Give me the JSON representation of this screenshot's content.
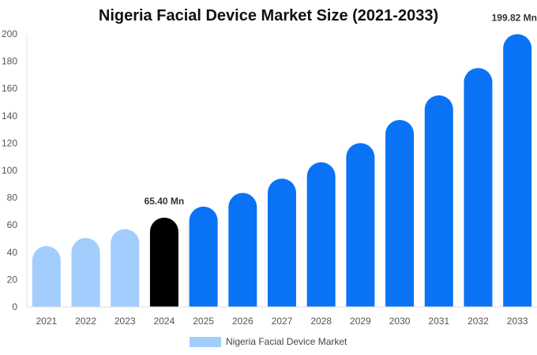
{
  "chart_data": {
    "type": "bar",
    "title": "Nigeria Facial Device Market Size (2021-2033)",
    "categories": [
      "2021",
      "2022",
      "2023",
      "2024",
      "2025",
      "2026",
      "2027",
      "2028",
      "2029",
      "2030",
      "2031",
      "2032",
      "2033"
    ],
    "series": [
      {
        "name": "Nigeria Facial Device Market",
        "values": [
          44.5,
          50.5,
          57.0,
          65.4,
          73.5,
          83.5,
          94.0,
          106.0,
          120.0,
          137.0,
          155.0,
          175.0,
          199.82
        ]
      }
    ],
    "bar_colors": [
      "#a3cdfd",
      "#a3cdfd",
      "#a3cdfd",
      "#000000",
      "#0a73f5",
      "#0a73f5",
      "#0a73f5",
      "#0a73f5",
      "#0a73f5",
      "#0a73f5",
      "#0a73f5",
      "#0a73f5",
      "#0a73f5"
    ],
    "data_labels": [
      {
        "category": "2024",
        "text": "65.40 Mn"
      },
      {
        "category": "2033",
        "text": "199.82 Mn"
      }
    ],
    "ylim": [
      0,
      200
    ],
    "yticks": [
      0,
      20,
      40,
      60,
      80,
      100,
      120,
      140,
      160,
      180,
      200
    ],
    "xlabel": "",
    "ylabel": "",
    "grid": false,
    "legend_position": "bottom-center",
    "legend_color": "#a3cdfd"
  }
}
